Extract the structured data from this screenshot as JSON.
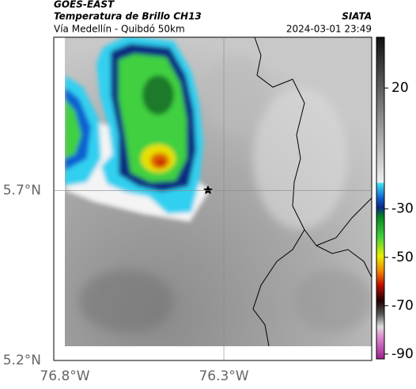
{
  "header": {
    "satellite": "GOES-EAST",
    "product": "Temperatura de Brillo CH13",
    "source": "SIATA",
    "route": "Vía Medellín - Quibdó 50km",
    "timestamp": "2024-03-01 23:49"
  },
  "map": {
    "xlim": [
      -76.8,
      -75.835
    ],
    "ylim": [
      5.2,
      6.15
    ],
    "xticks": [
      {
        "value": -76.8,
        "label": "76.8°W"
      },
      {
        "value": -76.3,
        "label": "76.3°W"
      }
    ],
    "yticks": [
      {
        "value": 5.2,
        "label": "5.2°N"
      },
      {
        "value": 5.7,
        "label": "5.7°N"
      }
    ]
  },
  "colorbar": {
    "lim": [
      -92,
      41
    ],
    "ticks": [
      20,
      -30,
      -50,
      -70,
      -90
    ]
  }
}
